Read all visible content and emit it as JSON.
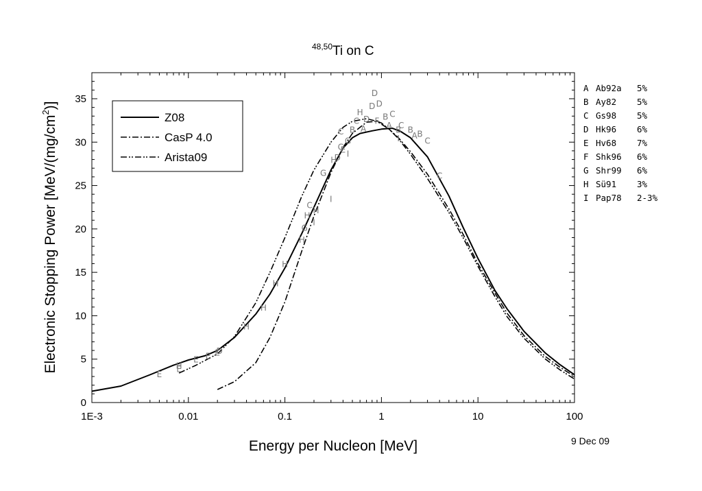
{
  "chart_data": {
    "type": "line",
    "title_sup": "48,50",
    "title_main": "Ti on C",
    "xlabel": "Energy per Nucleon [MeV]",
    "ylabel_pre": "Electronic Stopping Power [MeV/(mg/cm",
    "ylabel_sup": "2",
    "ylabel_post": ")]",
    "xscale": "log",
    "xlim": [
      0.001,
      100
    ],
    "ylim": [
      0,
      38
    ],
    "x_ticks": [
      {
        "v": 0.001,
        "label": "1E-3"
      },
      {
        "v": 0.01,
        "label": "0.01"
      },
      {
        "v": 0.1,
        "label": "0.1"
      },
      {
        "v": 1,
        "label": "1"
      },
      {
        "v": 10,
        "label": "10"
      },
      {
        "v": 100,
        "label": "100"
      }
    ],
    "y_ticks": [
      {
        "v": 0,
        "label": "0"
      },
      {
        "v": 5,
        "label": "5"
      },
      {
        "v": 10,
        "label": "10"
      },
      {
        "v": 15,
        "label": "15"
      },
      {
        "v": 20,
        "label": "20"
      },
      {
        "v": 25,
        "label": "25"
      },
      {
        "v": 30,
        "label": "30"
      },
      {
        "v": 35,
        "label": "35"
      }
    ],
    "grid": false,
    "legend_position": "top-left",
    "series": [
      {
        "name": "Z08",
        "dash": "solid",
        "points": [
          [
            0.001,
            1.3
          ],
          [
            0.002,
            1.9
          ],
          [
            0.004,
            3.2
          ],
          [
            0.007,
            4.3
          ],
          [
            0.01,
            4.9
          ],
          [
            0.015,
            5.4
          ],
          [
            0.02,
            6.0
          ],
          [
            0.03,
            7.5
          ],
          [
            0.05,
            10.2
          ],
          [
            0.07,
            12.5
          ],
          [
            0.1,
            15.5
          ],
          [
            0.15,
            19.5
          ],
          [
            0.2,
            22.5
          ],
          [
            0.3,
            26.8
          ],
          [
            0.4,
            29.3
          ],
          [
            0.5,
            30.5
          ],
          [
            0.6,
            31.0
          ],
          [
            0.8,
            31.3
          ],
          [
            1.0,
            31.5
          ],
          [
            1.3,
            31.6
          ],
          [
            1.6,
            31.2
          ],
          [
            2,
            30.5
          ],
          [
            3,
            28.3
          ],
          [
            5,
            23.8
          ],
          [
            7,
            20.2
          ],
          [
            10,
            16.6
          ],
          [
            15,
            12.9
          ],
          [
            20,
            10.8
          ],
          [
            30,
            8.2
          ],
          [
            50,
            5.7
          ],
          [
            70,
            4.4
          ],
          [
            100,
            3.2
          ]
        ]
      },
      {
        "name": "CasP 4.0",
        "dash": "dashdot",
        "points": [
          [
            0.02,
            1.5
          ],
          [
            0.03,
            2.4
          ],
          [
            0.05,
            4.6
          ],
          [
            0.07,
            7.5
          ],
          [
            0.1,
            11.6
          ],
          [
            0.15,
            17.5
          ],
          [
            0.2,
            21.5
          ],
          [
            0.3,
            26.5
          ],
          [
            0.4,
            29.4
          ],
          [
            0.5,
            31.0
          ],
          [
            0.7,
            32.3
          ],
          [
            0.9,
            32.4
          ],
          [
            1.0,
            32.2
          ],
          [
            1.2,
            31.5
          ],
          [
            1.5,
            30.5
          ],
          [
            2,
            28.9
          ],
          [
            3,
            26.3
          ],
          [
            5,
            22.3
          ],
          [
            7,
            19.4
          ],
          [
            10,
            16.0
          ],
          [
            15,
            12.6
          ],
          [
            20,
            10.3
          ],
          [
            30,
            7.7
          ],
          [
            50,
            5.3
          ],
          [
            70,
            4.1
          ],
          [
            100,
            3.0
          ]
        ]
      },
      {
        "name": "Arista09",
        "dash": "dashdotdot",
        "points": [
          [
            0.008,
            3.4
          ],
          [
            0.012,
            4.3
          ],
          [
            0.02,
            5.6
          ],
          [
            0.03,
            7.6
          ],
          [
            0.05,
            11.5
          ],
          [
            0.07,
            15.0
          ],
          [
            0.1,
            19.0
          ],
          [
            0.15,
            23.8
          ],
          [
            0.2,
            26.8
          ],
          [
            0.3,
            30.0
          ],
          [
            0.4,
            31.7
          ],
          [
            0.5,
            32.4
          ],
          [
            0.7,
            32.7
          ],
          [
            0.9,
            32.4
          ],
          [
            1.2,
            31.5
          ],
          [
            1.5,
            30.4
          ],
          [
            2,
            28.6
          ],
          [
            3,
            25.8
          ],
          [
            5,
            21.9
          ],
          [
            7,
            19.0
          ],
          [
            10,
            15.7
          ],
          [
            15,
            12.2
          ],
          [
            20,
            9.9
          ],
          [
            30,
            7.4
          ],
          [
            50,
            5.0
          ],
          [
            70,
            3.8
          ],
          [
            100,
            2.7
          ]
        ]
      }
    ],
    "experimental_points": [
      {
        "ref": "E",
        "x": 0.005,
        "y": 3.3
      },
      {
        "ref": "E",
        "x": 0.008,
        "y": 3.9
      },
      {
        "ref": "H",
        "x": 0.008,
        "y": 4.3
      },
      {
        "ref": "E",
        "x": 0.012,
        "y": 5.0
      },
      {
        "ref": "E",
        "x": 0.016,
        "y": 5.4
      },
      {
        "ref": "E",
        "x": 0.02,
        "y": 5.8
      },
      {
        "ref": "D",
        "x": 0.021,
        "y": 6.0
      },
      {
        "ref": "H",
        "x": 0.04,
        "y": 8.8
      },
      {
        "ref": "H",
        "x": 0.06,
        "y": 11.0
      },
      {
        "ref": "H",
        "x": 0.08,
        "y": 13.8
      },
      {
        "ref": "H",
        "x": 0.1,
        "y": 16.0
      },
      {
        "ref": "H",
        "x": 0.15,
        "y": 18.8
      },
      {
        "ref": "G",
        "x": 0.16,
        "y": 20.2
      },
      {
        "ref": "H",
        "x": 0.17,
        "y": 21.6
      },
      {
        "ref": "C",
        "x": 0.18,
        "y": 22.8
      },
      {
        "ref": "I",
        "x": 0.2,
        "y": 20.8
      },
      {
        "ref": "H",
        "x": 0.21,
        "y": 22.2
      },
      {
        "ref": "G",
        "x": 0.25,
        "y": 26.5
      },
      {
        "ref": "I",
        "x": 0.3,
        "y": 23.5
      },
      {
        "ref": "H",
        "x": 0.32,
        "y": 28.0
      },
      {
        "ref": "D",
        "x": 0.35,
        "y": 28.3
      },
      {
        "ref": "G",
        "x": 0.38,
        "y": 29.5
      },
      {
        "ref": "C",
        "x": 0.38,
        "y": 31.3
      },
      {
        "ref": "E",
        "x": 0.4,
        "y": 29.2
      },
      {
        "ref": "G",
        "x": 0.45,
        "y": 30.2
      },
      {
        "ref": "I",
        "x": 0.45,
        "y": 28.7
      },
      {
        "ref": "B",
        "x": 0.5,
        "y": 31.5
      },
      {
        "ref": "C",
        "x": 0.55,
        "y": 32.5
      },
      {
        "ref": "H",
        "x": 0.6,
        "y": 33.5
      },
      {
        "ref": "A",
        "x": 0.65,
        "y": 31.6
      },
      {
        "ref": "D",
        "x": 0.7,
        "y": 32.7
      },
      {
        "ref": "D",
        "x": 0.8,
        "y": 34.2
      },
      {
        "ref": "D",
        "x": 0.85,
        "y": 35.7
      },
      {
        "ref": "F",
        "x": 0.9,
        "y": 32.5
      },
      {
        "ref": "D",
        "x": 0.95,
        "y": 34.5
      },
      {
        "ref": "B",
        "x": 1.1,
        "y": 33.0
      },
      {
        "ref": "C",
        "x": 1.3,
        "y": 33.3
      },
      {
        "ref": "A",
        "x": 1.2,
        "y": 32.0
      },
      {
        "ref": "B",
        "x": 1.5,
        "y": 31.5
      },
      {
        "ref": "I",
        "x": 1.5,
        "y": 30.5
      },
      {
        "ref": "C",
        "x": 1.6,
        "y": 32.0
      },
      {
        "ref": "B",
        "x": 2.0,
        "y": 31.5
      },
      {
        "ref": "A",
        "x": 2.2,
        "y": 30.8
      },
      {
        "ref": "B",
        "x": 2.5,
        "y": 31.0
      },
      {
        "ref": "C",
        "x": 3.0,
        "y": 30.2
      },
      {
        "ref": "C",
        "x": 4.0,
        "y": 26.2
      }
    ]
  },
  "legend": {
    "items": [
      {
        "label": "Z08"
      },
      {
        "label": "CasP 4.0"
      },
      {
        "label": "Arista09"
      }
    ]
  },
  "references": [
    {
      "code": "A",
      "name": "Ab92a",
      "err": "5%"
    },
    {
      "code": "B",
      "name": "Ay82",
      "err": "5%"
    },
    {
      "code": "C",
      "name": "Gs98",
      "err": "5%"
    },
    {
      "code": "D",
      "name": "Hk96",
      "err": "6%"
    },
    {
      "code": "E",
      "name": "Hv68",
      "err": "7%"
    },
    {
      "code": "F",
      "name": "Shk96",
      "err": "6%"
    },
    {
      "code": "G",
      "name": "Shr99",
      "err": "6%"
    },
    {
      "code": "H",
      "name": "Sü91",
      "err": "3%"
    },
    {
      "code": "I",
      "name": "Pap78",
      "err": "2-3%"
    }
  ],
  "date": "9 Dec 09"
}
